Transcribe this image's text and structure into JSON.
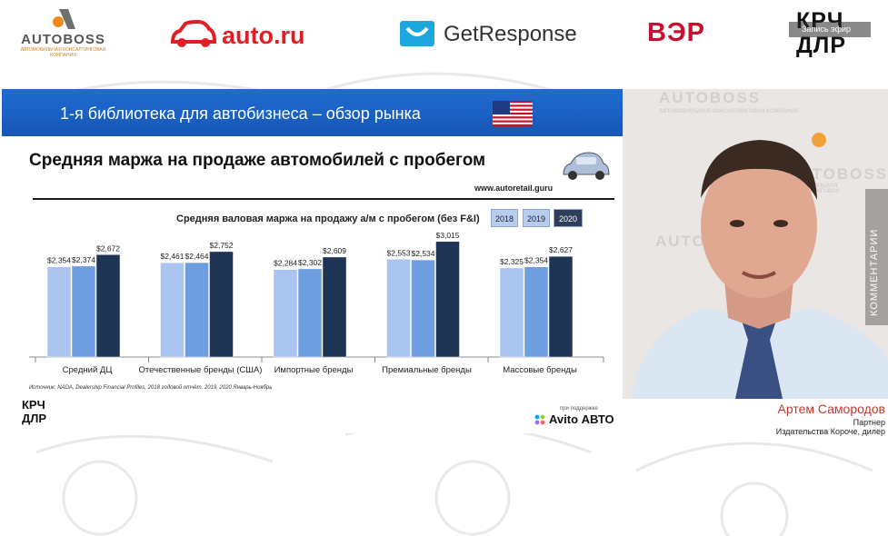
{
  "sponsors": {
    "autoboss": {
      "name": "AUTOBOSS",
      "tagline": "АВТОМОБИЛЬНАЯ КОНСАЛТИНГОВАЯ КОМПАНИЯ"
    },
    "autoru": "auto.ru",
    "getresponse": "GetResponse",
    "ver": "ВЭР",
    "krd": "КРЧ ДЛР"
  },
  "overlay_tag": "Запись эфир",
  "slide": {
    "banner_title": "1-я библиотека для автобизнеса – обзор рынка",
    "heading": "Средняя маржа на продаже автомобилей с пробегом",
    "site": "www.autoretail.guru",
    "legend": [
      "2018",
      "2019",
      "2020"
    ],
    "source": "Источник: NADA, Dealership Financial Profiles, 2018 годовой отчёт, 2019, 2020 Январь-Ноябрь",
    "logo": "КРЧ ДЛР",
    "support_label": "при поддержке",
    "avito": "Avito АВТО"
  },
  "chart_data": {
    "type": "bar",
    "title": "Средняя валовая маржа на продажу а/м с пробегом  (без F&I)",
    "categories": [
      "Средний ДЦ",
      "Отечественные бренды (США)",
      "Импортные бренды",
      "Премиальные бренды",
      "Массовые бренды"
    ],
    "series": [
      {
        "name": "2018",
        "values": [
          2354,
          2461,
          2284,
          2553,
          2325
        ],
        "labels": [
          "$2,354",
          "$2,461",
          "$2,284",
          "$2,553",
          "$2,325"
        ],
        "color": "#a9c4ee"
      },
      {
        "name": "2019",
        "values": [
          2374,
          2464,
          2302,
          2534,
          2354
        ],
        "labels": [
          "$2,374",
          "$2,464",
          "$2,302",
          "$2,534",
          "$2,354"
        ],
        "color": "#6f9ee0"
      },
      {
        "name": "2020",
        "values": [
          2672,
          2752,
          2609,
          3015,
          2627
        ],
        "labels": [
          "$2,672",
          "$2,752",
          "$2,609",
          "$3,015",
          "$2,627"
        ],
        "color": "#1f3354"
      }
    ],
    "ylim": [
      0,
      3200
    ],
    "grid": false,
    "legend_position": "top-right"
  },
  "video": {
    "wall_words": [
      "AUTOBOSS",
      "AUTOBOSS",
      "AUTOBOSS",
      "АВТОМОБИЛЬНАЯ КОНСАЛТИНГОВАЯ КОМПАНИЯ",
      "АВТОМОБИЛЬНАЯ КОНСАЛТИНГОВАЯ"
    ],
    "side_tab": "КОММЕНТАРИИ"
  },
  "speaker": {
    "name": "Артем Самородов",
    "role": "Партнер",
    "org": "Издательства  Короче, дилер"
  }
}
